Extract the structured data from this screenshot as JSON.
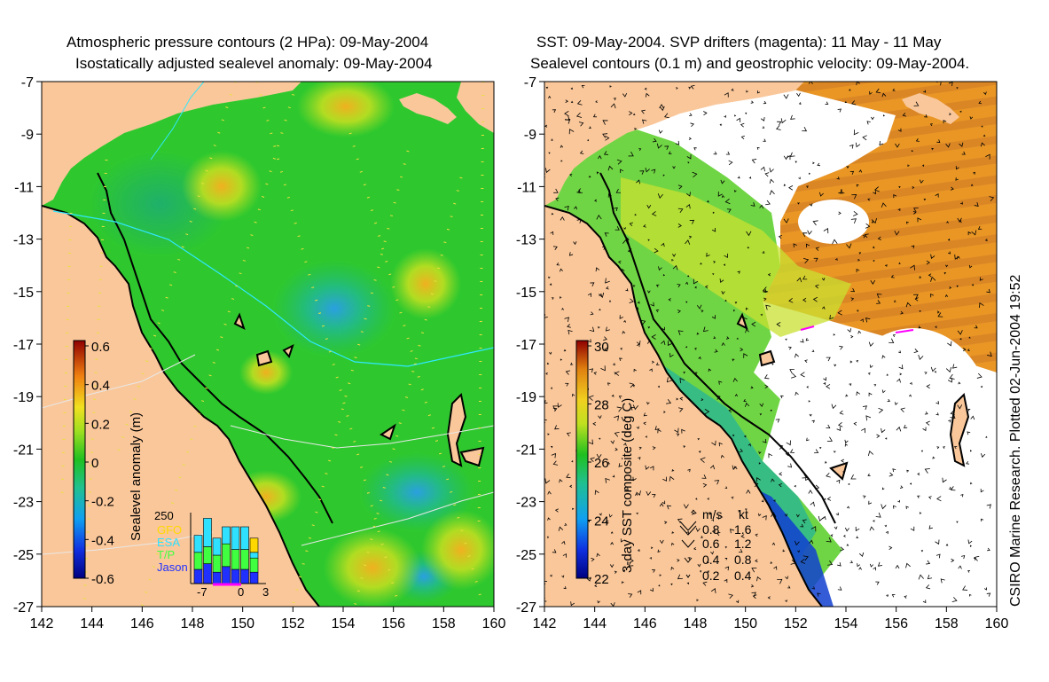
{
  "left_panel": {
    "title_line1": "Atmospheric pressure contours (2 HPa): 09-May-2004",
    "title_line2": "Isostatically adjusted sealevel anomaly: 09-May-2004",
    "x_ticks": [
      "142",
      "144",
      "146",
      "148",
      "150",
      "152",
      "154",
      "156",
      "158",
      "160"
    ],
    "y_ticks": [
      "-7",
      "-9",
      "-11",
      "-13",
      "-15",
      "-17",
      "-19",
      "-21",
      "-23",
      "-25",
      "-27"
    ],
    "colorbar": {
      "label": "Sealevel anomaly (m)",
      "ticks": [
        "0.6",
        "0.4",
        "0.2",
        "0",
        "-0.2",
        "-0.4",
        "-0.6"
      ],
      "range": [
        -0.6,
        0.6
      ]
    },
    "inset": {
      "y_max_label": "250",
      "legend": [
        "GFO",
        "ESA",
        "T/P",
        "Jason"
      ],
      "legend_colors": [
        "#ffd800",
        "#30e0ff",
        "#40ff40",
        "#2030ff"
      ],
      "x_ticks": [
        "-7",
        "0",
        "3"
      ],
      "bars": [
        {
          "x": -6,
          "Jason": 50,
          "T/P": 60,
          "ESA": 60,
          "GFO": 0
        },
        {
          "x": -5,
          "Jason": 70,
          "T/P": 60,
          "ESA": 100,
          "GFO": 0
        },
        {
          "x": -4,
          "Jason": 40,
          "T/P": 60,
          "ESA": 60,
          "GFO": 0
        },
        {
          "x": -3,
          "Jason": 60,
          "T/P": 80,
          "ESA": 60,
          "GFO": 0
        },
        {
          "x": -2,
          "Jason": 50,
          "T/P": 70,
          "ESA": 80,
          "GFO": 0
        },
        {
          "x": -1,
          "Jason": 50,
          "T/P": 70,
          "ESA": 80,
          "GFO": 0
        },
        {
          "x": 0,
          "Jason": 40,
          "T/P": 50,
          "ESA": 20,
          "GFO": 50
        }
      ]
    }
  },
  "right_panel": {
    "title_line1": "SST: 09-May-2004. SVP drifters (magenta): 11 May - 11 May",
    "title_line2": "Sealevel contours (0.1 m) and geostrophic velocity: 09-May-2004.",
    "x_ticks": [
      "142",
      "144",
      "146",
      "148",
      "150",
      "152",
      "154",
      "156",
      "158",
      "160"
    ],
    "y_ticks": [
      "-7",
      "-9",
      "-11",
      "-13",
      "-15",
      "-17",
      "-19",
      "-21",
      "-23",
      "-25",
      "-27"
    ],
    "colorbar": {
      "label": "3-day SST composite (deg C)",
      "ticks": [
        "30",
        "28",
        "26",
        "24",
        "22"
      ],
      "range": [
        22,
        30
      ]
    },
    "velocity_legend": {
      "header_ms": "m/s",
      "header_kt": "kt",
      "rows": [
        {
          "ms": "0.8",
          "kt": "1.6"
        },
        {
          "ms": "0.6",
          "kt": "1.2"
        },
        {
          "ms": "0.4",
          "kt": "0.8"
        },
        {
          "ms": "0.2",
          "kt": "0.4"
        }
      ]
    },
    "credit": "CSIRO Marine Research. Plotted 02-Jun-2004 19:52"
  },
  "colors": {
    "land": "#fac79a",
    "sla_base": "#22cc22",
    "sst_warm": "#e88a10",
    "coast": "#000000",
    "drifter": "#ff00ff",
    "cyan_contour": "#30e8ff"
  }
}
